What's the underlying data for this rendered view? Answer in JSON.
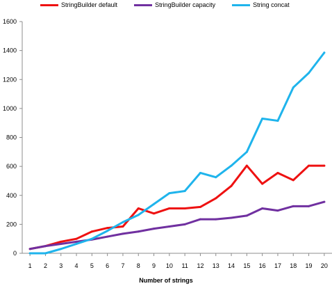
{
  "chart_data": {
    "type": "line",
    "title": "",
    "xlabel": "Number of strings",
    "ylabel": "",
    "x": [
      1,
      2,
      3,
      4,
      5,
      6,
      7,
      8,
      9,
      10,
      11,
      12,
      13,
      14,
      15,
      16,
      17,
      18,
      19,
      20
    ],
    "ylim": [
      0,
      1600
    ],
    "yticks": [
      0,
      200,
      400,
      600,
      800,
      1000,
      1200,
      1400,
      1600
    ],
    "grid": false,
    "legend_position": "top",
    "series": [
      {
        "name": "StringBuilder default",
        "color": "#ee1111",
        "values": [
          30,
          50,
          80,
          100,
          150,
          175,
          185,
          310,
          275,
          310,
          310,
          320,
          380,
          465,
          605,
          480,
          555,
          505,
          605,
          605
        ]
      },
      {
        "name": "StringBuilder capacity",
        "color": "#7030a0",
        "values": [
          30,
          50,
          65,
          80,
          95,
          115,
          135,
          150,
          170,
          185,
          200,
          235,
          235,
          245,
          260,
          310,
          295,
          325,
          325,
          355
        ]
      },
      {
        "name": "String concat",
        "color": "#1fb4ec",
        "values": [
          0,
          0,
          30,
          65,
          100,
          155,
          215,
          265,
          340,
          415,
          430,
          555,
          525,
          605,
          700,
          930,
          915,
          1145,
          1245,
          1385
        ]
      }
    ]
  }
}
